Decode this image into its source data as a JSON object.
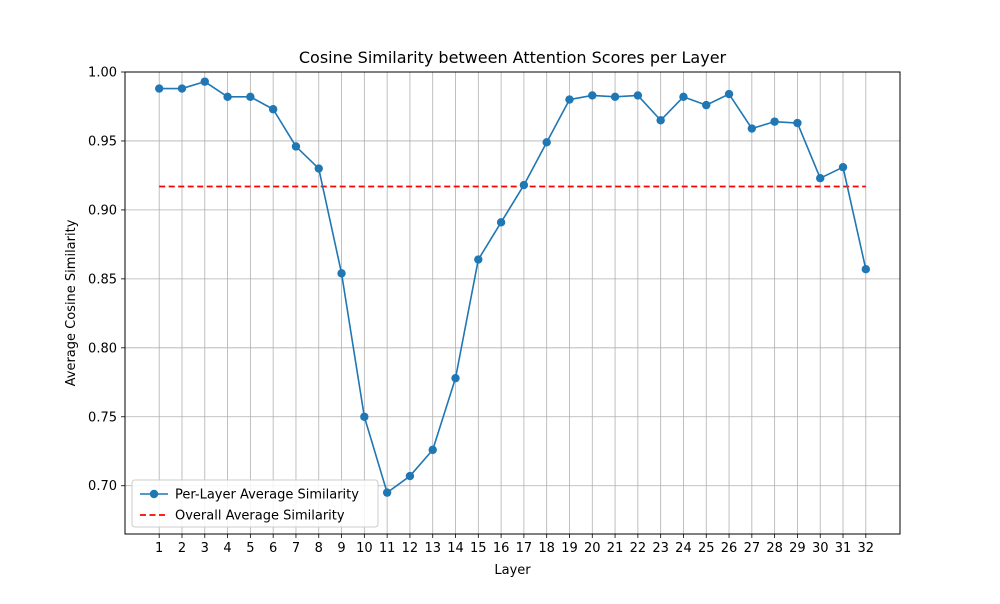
{
  "chart_data": {
    "type": "line",
    "title": "Cosine Similarity between Attention Scores per Layer",
    "xlabel": "Layer",
    "ylabel": "Average Cosine Similarity",
    "xlim": [
      -0.5,
      33.5
    ],
    "ylim": [
      0.665,
      1.0
    ],
    "x": [
      1,
      2,
      3,
      4,
      5,
      6,
      7,
      8,
      9,
      10,
      11,
      12,
      13,
      14,
      15,
      16,
      17,
      18,
      19,
      20,
      21,
      22,
      23,
      24,
      25,
      26,
      27,
      28,
      29,
      30,
      31,
      32
    ],
    "xticks": [
      "1",
      "2",
      "3",
      "4",
      "5",
      "6",
      "7",
      "8",
      "9",
      "10",
      "11",
      "12",
      "13",
      "14",
      "15",
      "16",
      "17",
      "18",
      "19",
      "20",
      "21",
      "22",
      "23",
      "24",
      "25",
      "26",
      "27",
      "28",
      "29",
      "30",
      "31",
      "32"
    ],
    "yticks": [
      0.7,
      0.75,
      0.8,
      0.85,
      0.9,
      0.95,
      1.0
    ],
    "ytick_labels": [
      "0.70",
      "0.75",
      "0.80",
      "0.85",
      "0.90",
      "0.95",
      "1.00"
    ],
    "grid": true,
    "legend_position": "lower-left",
    "series": [
      {
        "name": "Per-Layer Average Similarity",
        "color": "#1f77b4",
        "style": "solid-with-circle-markers",
        "values": [
          0.988,
          0.988,
          0.993,
          0.982,
          0.982,
          0.973,
          0.946,
          0.93,
          0.854,
          0.75,
          0.695,
          0.707,
          0.726,
          0.778,
          0.864,
          0.891,
          0.918,
          0.949,
          0.98,
          0.983,
          0.982,
          0.983,
          0.965,
          0.982,
          0.976,
          0.984,
          0.959,
          0.964,
          0.963,
          0.923,
          0.931,
          0.857
        ]
      },
      {
        "name": "Overall Average Similarity",
        "color": "#ff0000",
        "style": "dashed",
        "constant": 0.917
      }
    ]
  }
}
